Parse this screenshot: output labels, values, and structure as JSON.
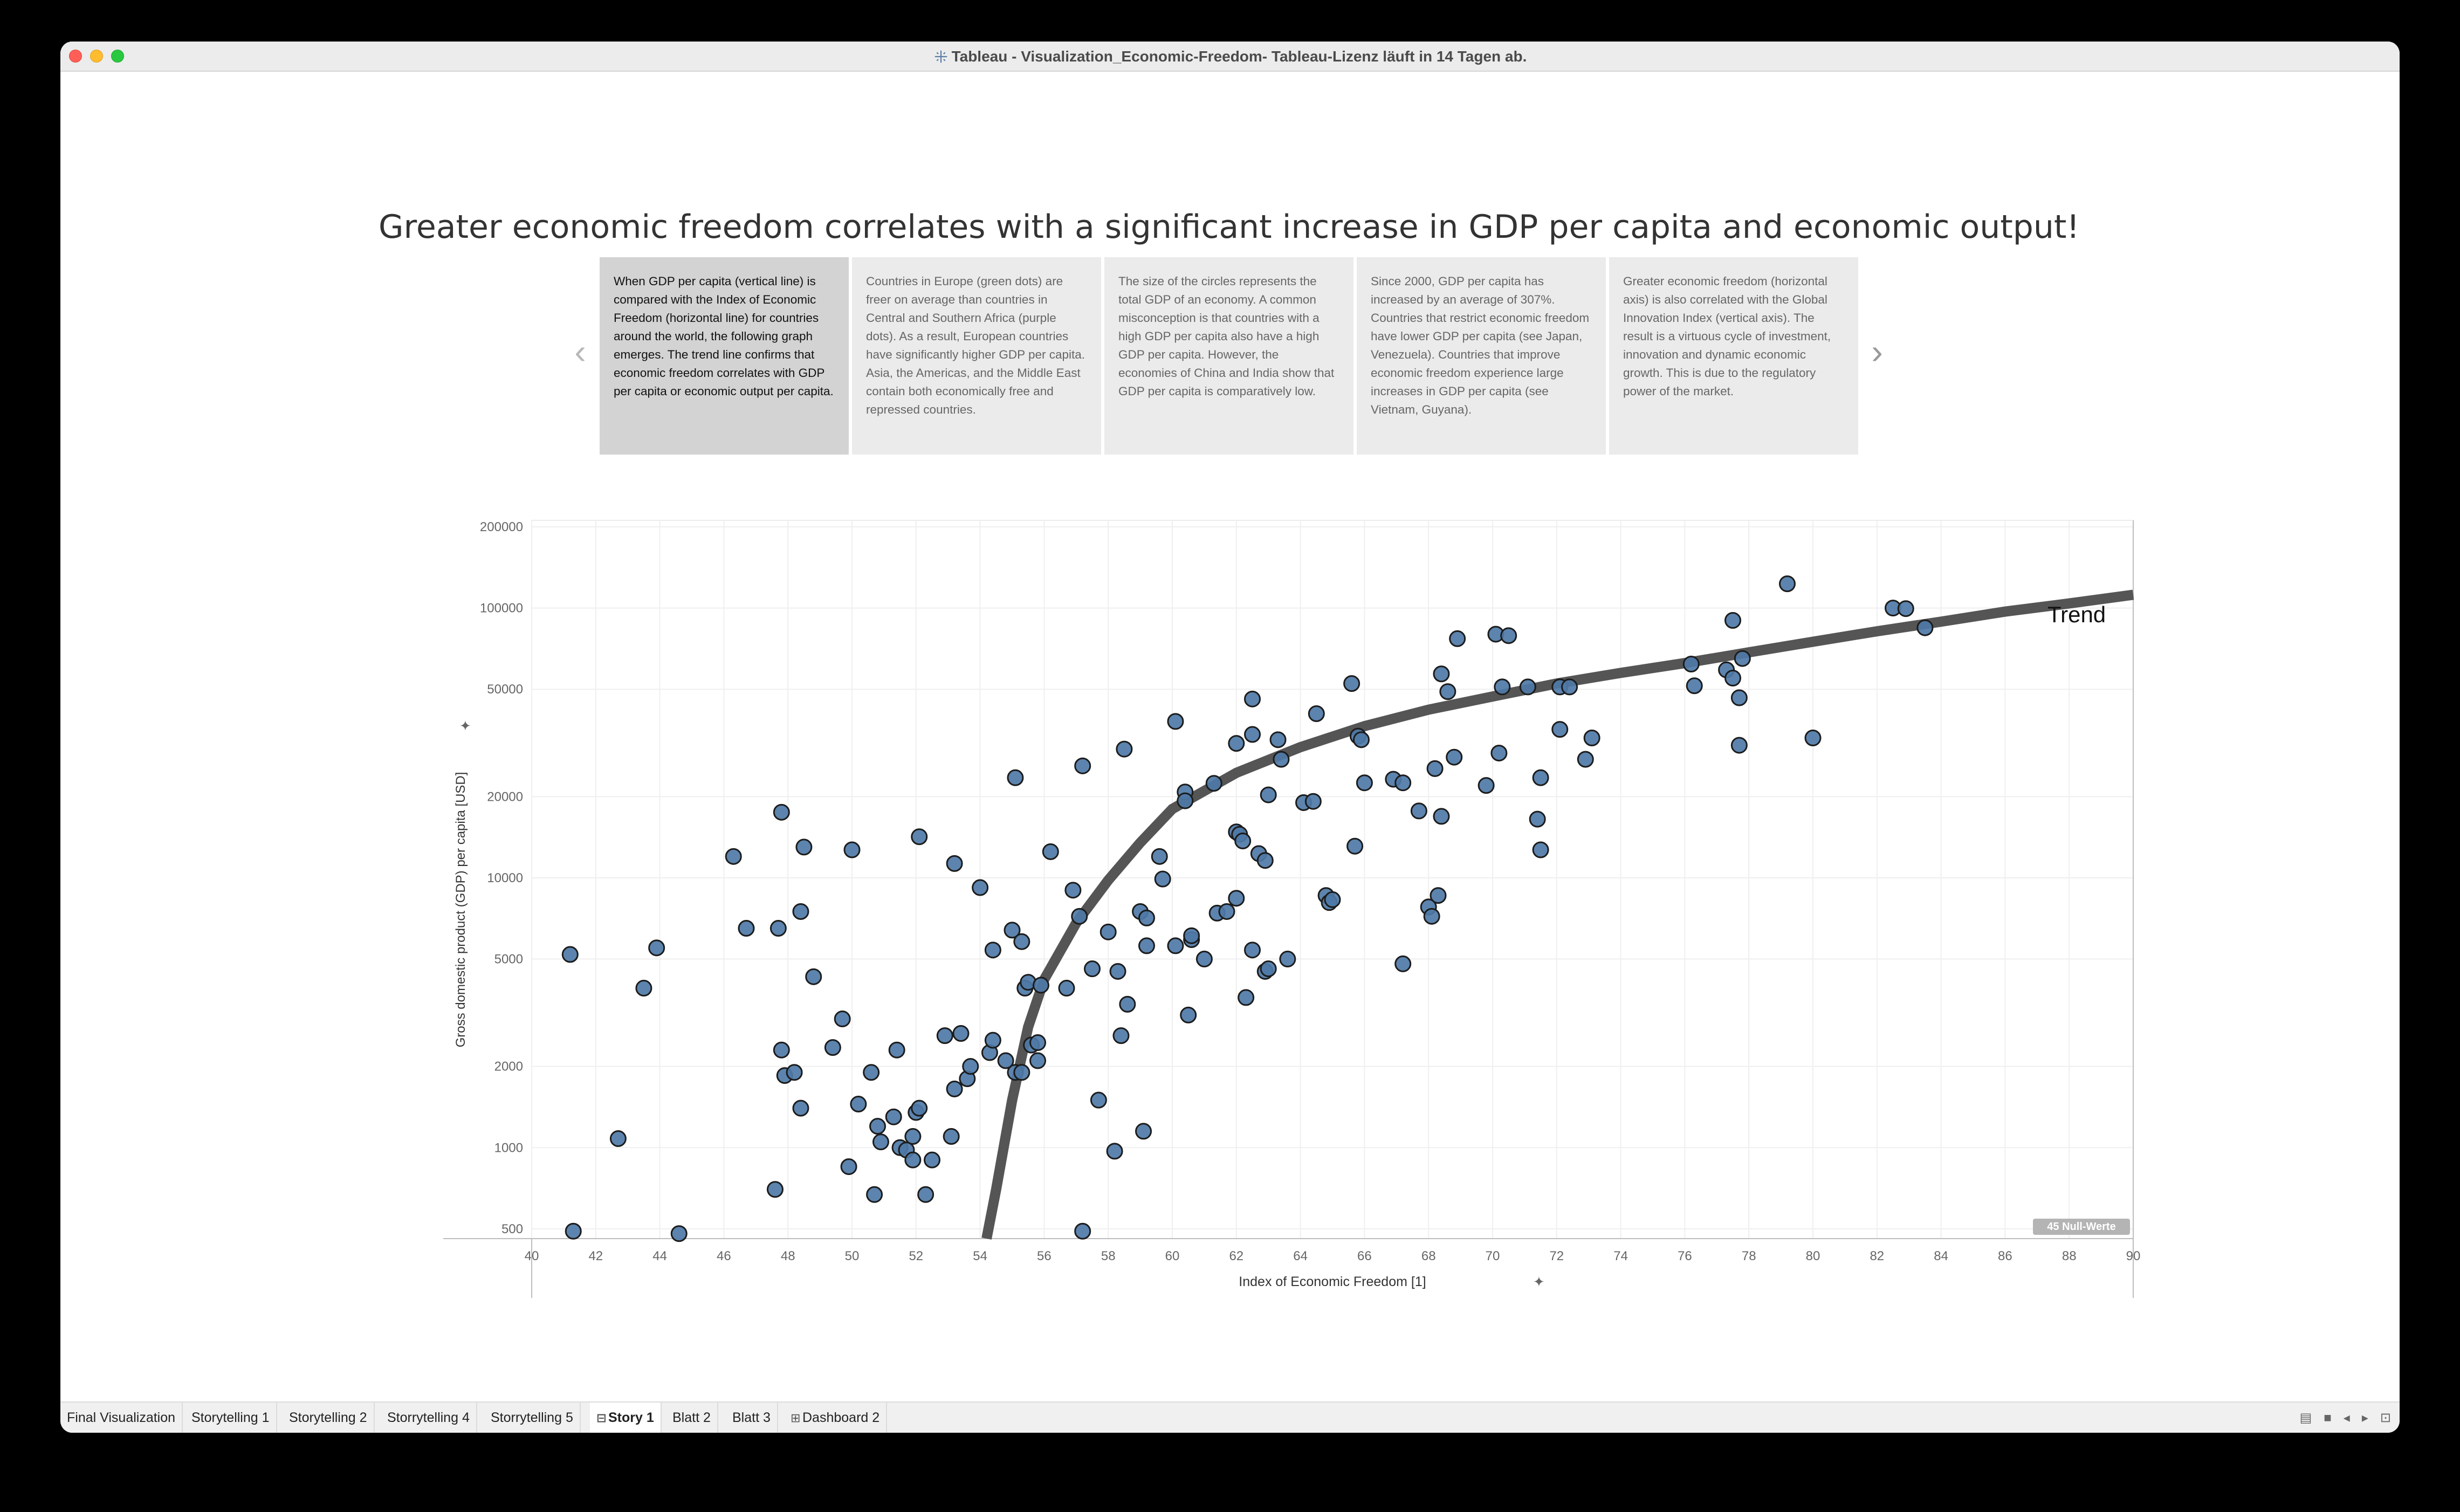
{
  "window": {
    "title": "Tableau - Visualization_Economic-Freedom- Tableau-Lizenz läuft in 14 Tagen ab."
  },
  "story": {
    "title": "Greater economic freedom correlates with a significant increase in GDP per capita and economic output!",
    "points": [
      {
        "text": "When GDP per capita (vertical line) is compared with the Index of Economic Freedom (horizontal line) for countries around the world, the following graph emerges. The trend line confirms that economic freedom correlates with GDP per capita or economic output per capita.",
        "active": true
      },
      {
        "text": "Countries in Europe (green dots) are freer on average than countries in Central and Southern Africa (purple dots). As a result, European countries have significantly higher GDP per capita. Asia, the Americas, and the Middle East contain both economically free and repressed countries."
      },
      {
        "text": "The size of the circles represents the total GDP of an economy. A common misconception is that countries with a high GDP per capita also have a high GDP per capita. However, the economies of China and India show that GDP per capita is comparatively low."
      },
      {
        "text": "Since 2000, GDP per capita has increased by an average of 307%. Countries that restrict economic freedom have lower GDP per capita (see Japan, Venezuela). Countries that improve economic freedom experience large increases in GDP per capita (see Vietnam, Guyana)."
      },
      {
        "text": "Greater economic freedom (horizontal axis) is also correlated with the Global Innovation Index (vertical axis).  The result is a virtuous cycle of investment, innovation and dynamic economic growth. This is due to the regulatory power of the market."
      }
    ],
    "prev_arrow": "‹",
    "next_arrow": "›"
  },
  "chart_data": {
    "type": "scatter",
    "xlabel": "Index of Economic Freedom [1]",
    "ylabel": "Gross domestic product (GDP) per capita [USD]",
    "x_ticks": [
      40,
      42,
      44,
      46,
      48,
      50,
      52,
      54,
      56,
      58,
      60,
      62,
      64,
      66,
      68,
      70,
      72,
      74,
      76,
      78,
      80,
      82,
      84,
      86,
      88,
      90
    ],
    "y_ticks": [
      {
        "value": 500,
        "label": "500"
      },
      {
        "value": 1000,
        "label": "1000"
      },
      {
        "value": 2000,
        "label": "2000"
      },
      {
        "value": 5000,
        "label": "5000"
      },
      {
        "value": 10000,
        "label": "10000"
      },
      {
        "value": 20000,
        "label": "20000"
      },
      {
        "value": 50000,
        "label": "50000"
      },
      {
        "value": 100000,
        "label": "100000"
      },
      {
        "value": 200000,
        "label": "200000"
      }
    ],
    "xlim": [
      40,
      90
    ],
    "ylim": [
      460,
      200000
    ],
    "y_scale": "log",
    "grid": true,
    "point_color": "#4e79a7",
    "trend_color": "#555555",
    "trend_label": "Trend",
    "null_badge": "45 Null-Werte",
    "trend": [
      [
        54.2,
        460
      ],
      [
        54.5,
        700
      ],
      [
        55,
        1500
      ],
      [
        55.5,
        2800
      ],
      [
        56,
        4200
      ],
      [
        57,
        6800
      ],
      [
        58,
        9800
      ],
      [
        59,
        13500
      ],
      [
        60,
        18000
      ],
      [
        62,
        24500
      ],
      [
        64,
        30500
      ],
      [
        66,
        36500
      ],
      [
        68,
        42000
      ],
      [
        70,
        47000
      ],
      [
        72,
        52500
      ],
      [
        74,
        57500
      ],
      [
        76,
        62500
      ],
      [
        78,
        68500
      ],
      [
        80,
        75000
      ],
      [
        82,
        82000
      ],
      [
        84,
        89000
      ],
      [
        86,
        97000
      ],
      [
        88,
        104000
      ],
      [
        90,
        112000
      ]
    ],
    "points": [
      [
        41.2,
        5200
      ],
      [
        41.3,
        490
      ],
      [
        42.7,
        1080
      ],
      [
        43.5,
        3900
      ],
      [
        43.9,
        5500
      ],
      [
        44.6,
        480
      ],
      [
        46.3,
        12000
      ],
      [
        46.7,
        6500
      ],
      [
        47.6,
        700
      ],
      [
        47.7,
        6500
      ],
      [
        47.8,
        17500
      ],
      [
        47.8,
        2300
      ],
      [
        47.9,
        1850
      ],
      [
        48.2,
        1900
      ],
      [
        48.4,
        1400
      ],
      [
        48.4,
        7500
      ],
      [
        48.5,
        13000
      ],
      [
        48.8,
        4300
      ],
      [
        49.4,
        2350
      ],
      [
        49.7,
        3000
      ],
      [
        49.9,
        850
      ],
      [
        50.0,
        12700
      ],
      [
        50.2,
        1450
      ],
      [
        50.6,
        1900
      ],
      [
        50.7,
        670
      ],
      [
        50.8,
        1200
      ],
      [
        50.9,
        1050
      ],
      [
        51.3,
        1300
      ],
      [
        51.4,
        2300
      ],
      [
        51.5,
        1000
      ],
      [
        51.7,
        980
      ],
      [
        51.9,
        900
      ],
      [
        51.9,
        1100
      ],
      [
        52.0,
        1350
      ],
      [
        52.1,
        1400
      ],
      [
        52.1,
        14200
      ],
      [
        52.3,
        670
      ],
      [
        52.5,
        900
      ],
      [
        52.9,
        2600
      ],
      [
        53.1,
        1100
      ],
      [
        53.2,
        11300
      ],
      [
        53.2,
        1650
      ],
      [
        53.4,
        2650
      ],
      [
        53.6,
        1800
      ],
      [
        53.7,
        2000
      ],
      [
        54.0,
        9200
      ],
      [
        54.3,
        2250
      ],
      [
        54.4,
        2500
      ],
      [
        54.4,
        5400
      ],
      [
        54.8,
        2100
      ],
      [
        55.0,
        6400
      ],
      [
        55.1,
        23500
      ],
      [
        55.1,
        1900
      ],
      [
        55.3,
        1900
      ],
      [
        55.3,
        5800
      ],
      [
        55.4,
        3900
      ],
      [
        55.5,
        4100
      ],
      [
        55.6,
        2400
      ],
      [
        55.8,
        2100
      ],
      [
        55.8,
        2450
      ],
      [
        55.9,
        4000
      ],
      [
        56.2,
        12500
      ],
      [
        56.7,
        3900
      ],
      [
        56.9,
        9000
      ],
      [
        57.1,
        7200
      ],
      [
        57.2,
        26000
      ],
      [
        57.2,
        490
      ],
      [
        57.5,
        4600
      ],
      [
        57.7,
        1500
      ],
      [
        58.0,
        6300
      ],
      [
        58.2,
        970
      ],
      [
        58.3,
        4500
      ],
      [
        58.4,
        2600
      ],
      [
        58.5,
        30000
      ],
      [
        58.6,
        3400
      ],
      [
        59.0,
        7500
      ],
      [
        59.1,
        1150
      ],
      [
        59.2,
        7100
      ],
      [
        59.2,
        5600
      ],
      [
        59.6,
        12000
      ],
      [
        59.7,
        9900
      ],
      [
        60.1,
        38000
      ],
      [
        60.1,
        5600
      ],
      [
        60.4,
        20800
      ],
      [
        60.4,
        19300
      ],
      [
        60.5,
        3100
      ],
      [
        60.6,
        5900
      ],
      [
        60.6,
        6100
      ],
      [
        61.0,
        5000
      ],
      [
        61.3,
        22400
      ],
      [
        61.4,
        7400
      ],
      [
        61.7,
        7500
      ],
      [
        62.0,
        8400
      ],
      [
        62.0,
        14800
      ],
      [
        62.0,
        31500
      ],
      [
        62.1,
        14500
      ],
      [
        62.2,
        13700
      ],
      [
        62.3,
        3600
      ],
      [
        62.5,
        5400
      ],
      [
        62.5,
        34000
      ],
      [
        62.5,
        46000
      ],
      [
        62.7,
        12300
      ],
      [
        62.9,
        11600
      ],
      [
        62.9,
        4500
      ],
      [
        63.0,
        20300
      ],
      [
        63.0,
        4600
      ],
      [
        63.3,
        32500
      ],
      [
        63.4,
        27500
      ],
      [
        63.6,
        5000
      ],
      [
        64.1,
        19000
      ],
      [
        64.4,
        19200
      ],
      [
        64.5,
        40600
      ],
      [
        64.8,
        8600
      ],
      [
        64.9,
        8100
      ],
      [
        65.0,
        8300
      ],
      [
        65.6,
        52500
      ],
      [
        65.7,
        13100
      ],
      [
        65.8,
        33500
      ],
      [
        65.9,
        32500
      ],
      [
        66.0,
        22500
      ],
      [
        66.9,
        23200
      ],
      [
        67.2,
        22500
      ],
      [
        67.2,
        4800
      ],
      [
        67.7,
        17700
      ],
      [
        68.0,
        7800
      ],
      [
        68.1,
        7200
      ],
      [
        68.2,
        25400
      ],
      [
        68.3,
        8600
      ],
      [
        68.4,
        16900
      ],
      [
        68.4,
        57000
      ],
      [
        68.6,
        49000
      ],
      [
        68.8,
        28000
      ],
      [
        68.9,
        77000
      ],
      [
        69.8,
        22000
      ],
      [
        70.1,
        80000
      ],
      [
        70.2,
        29000
      ],
      [
        70.3,
        51000
      ],
      [
        70.5,
        79000
      ],
      [
        71.1,
        51000
      ],
      [
        71.4,
        16500
      ],
      [
        71.5,
        12700
      ],
      [
        71.5,
        23500
      ],
      [
        72.1,
        35500
      ],
      [
        72.1,
        51000
      ],
      [
        72.4,
        51000
      ],
      [
        72.9,
        27500
      ],
      [
        73.1,
        33000
      ],
      [
        76.2,
        62000
      ],
      [
        76.3,
        51500
      ],
      [
        77.3,
        59000
      ],
      [
        77.5,
        55000
      ],
      [
        77.5,
        90000
      ],
      [
        77.7,
        31000
      ],
      [
        77.7,
        46500
      ],
      [
        77.8,
        65000
      ],
      [
        79.2,
        123000
      ],
      [
        80.0,
        33000
      ],
      [
        82.5,
        100000
      ],
      [
        82.9,
        99500
      ],
      [
        83.5,
        84500
      ]
    ]
  },
  "tabs": [
    {
      "label": "Final Visualization",
      "icon": ""
    },
    {
      "label": "Storytelling 1",
      "icon": ""
    },
    {
      "label": "Storytelling 2",
      "icon": ""
    },
    {
      "label": "Storrytelling 4",
      "icon": ""
    },
    {
      "label": "Storrytelling 5",
      "icon": ""
    },
    {
      "label": "Story 1",
      "icon": "book-icon",
      "active": true
    },
    {
      "label": "Blatt 2",
      "icon": ""
    },
    {
      "label": "Blatt 3",
      "icon": ""
    },
    {
      "label": "Dashboard 2",
      "icon": "dashboard-icon"
    }
  ],
  "statusbar_icons": [
    "grid-view-icon",
    "single-view-icon",
    "prev-icon",
    "next-icon",
    "presentation-icon"
  ]
}
